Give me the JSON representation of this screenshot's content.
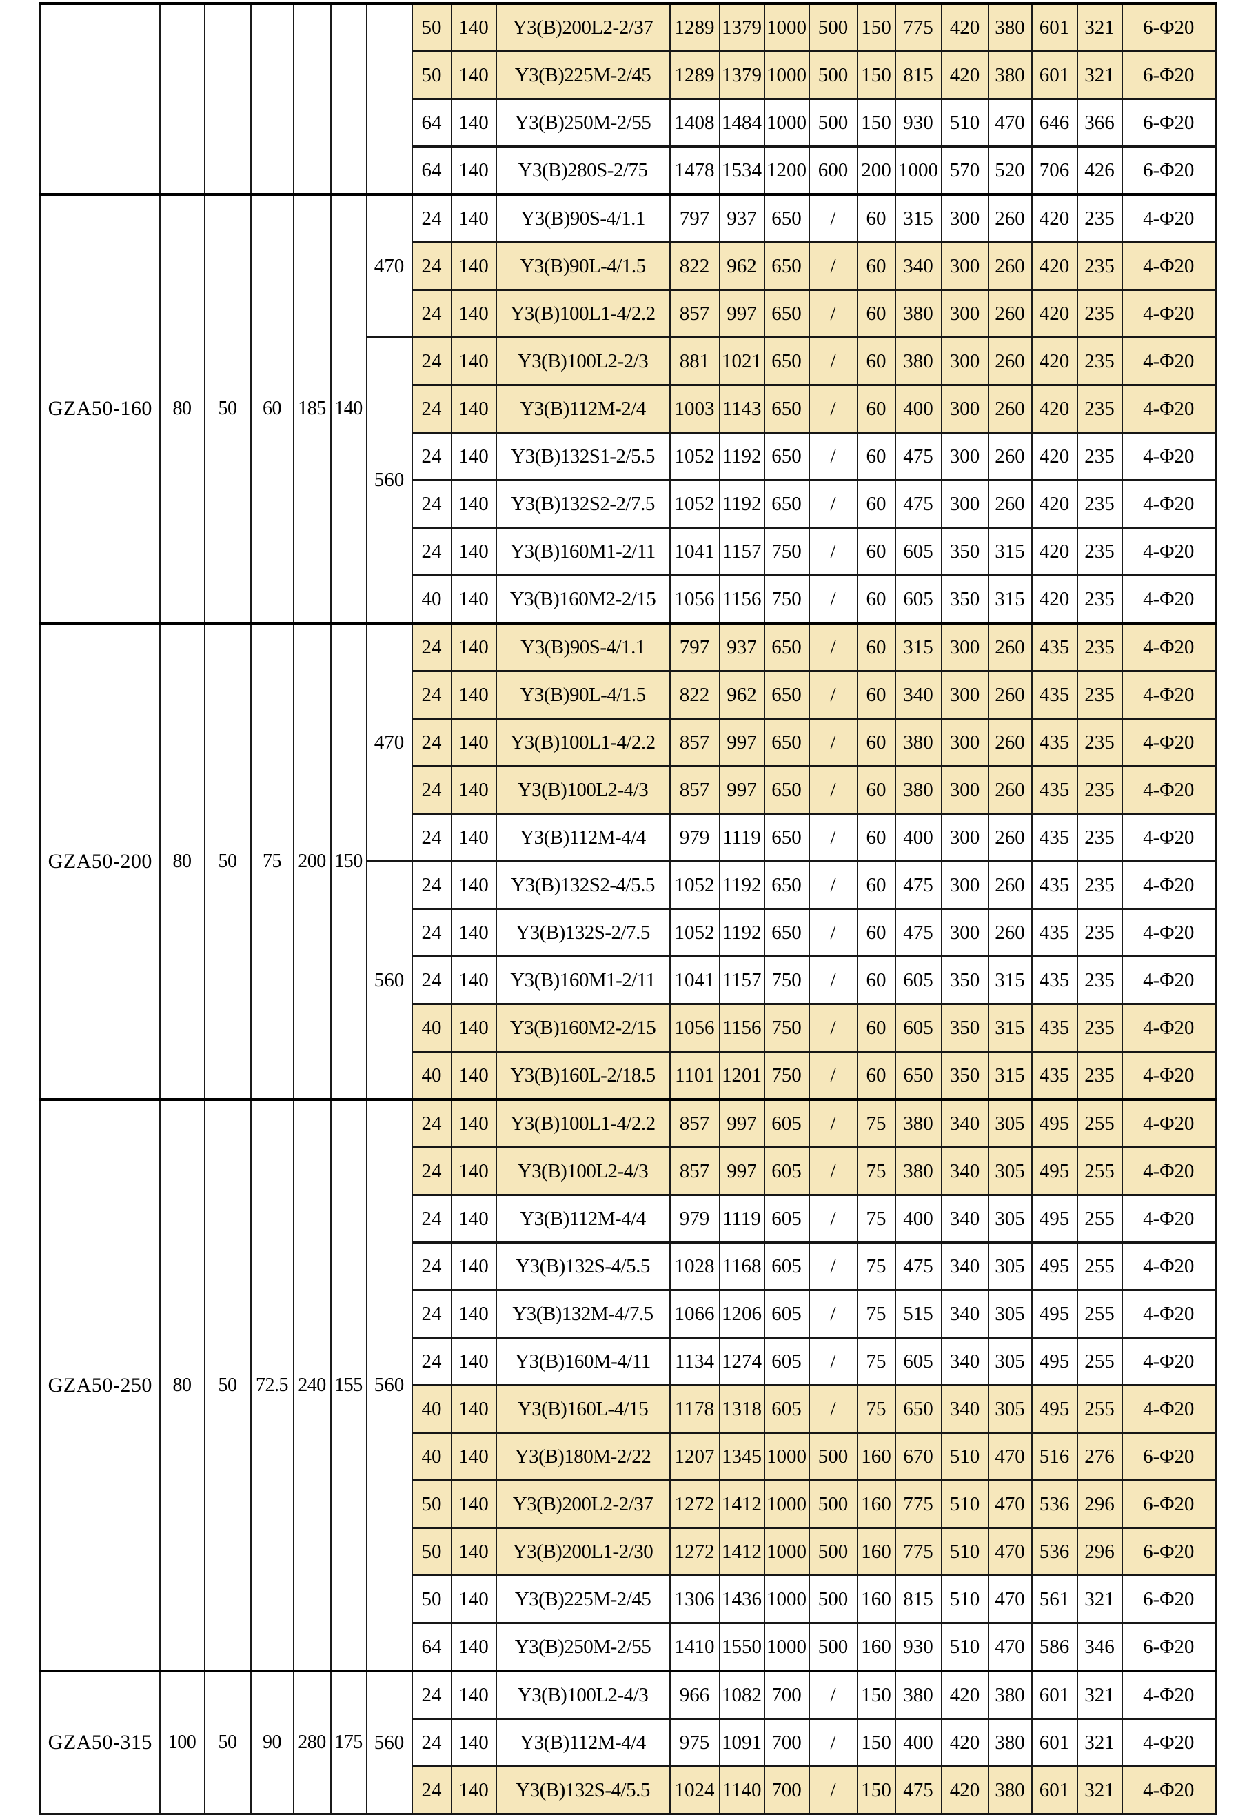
{
  "page": {
    "background_color": "#ffffff",
    "row_cream_color": "#f6e7bb",
    "row_white_color": "#ffffff",
    "grid_line_color": "#161616"
  },
  "table": {
    "blocks": [
      {
        "model": "",
        "dims": [
          "",
          "",
          "",
          "",
          ""
        ],
        "speed_groups": [
          {
            "label": "",
            "rows": 4
          }
        ],
        "rows": [
          {
            "shade": "cream",
            "cells": [
              "50",
              "140",
              "Y3(B)200L2-2/37",
              "1289",
              "1379",
              "1000",
              "500",
              "150",
              "775",
              "420",
              "380",
              "601",
              "321",
              "6-Φ20"
            ]
          },
          {
            "shade": "cream",
            "cells": [
              "50",
              "140",
              "Y3(B)225M-2/45",
              "1289",
              "1379",
              "1000",
              "500",
              "150",
              "815",
              "420",
              "380",
              "601",
              "321",
              "6-Φ20"
            ]
          },
          {
            "shade": "white",
            "cells": [
              "64",
              "140",
              "Y3(B)250M-2/55",
              "1408",
              "1484",
              "1000",
              "500",
              "150",
              "930",
              "510",
              "470",
              "646",
              "366",
              "6-Φ20"
            ]
          },
          {
            "shade": "white",
            "cells": [
              "64",
              "140",
              "Y3(B)280S-2/75",
              "1478",
              "1534",
              "1200",
              "600",
              "200",
              "1000",
              "570",
              "520",
              "706",
              "426",
              "6-Φ20"
            ]
          }
        ]
      },
      {
        "model": "GZA50-160",
        "dims": [
          "80",
          "50",
          "60",
          "185",
          "140"
        ],
        "speed_groups": [
          {
            "label": "470",
            "rows": 3
          },
          {
            "label": "560",
            "rows": 6
          }
        ],
        "rows": [
          {
            "shade": "white",
            "cells": [
              "24",
              "140",
              "Y3(B)90S-4/1.1",
              "797",
              "937",
              "650",
              "/",
              "60",
              "315",
              "300",
              "260",
              "420",
              "235",
              "4-Φ20"
            ]
          },
          {
            "shade": "cream",
            "cells": [
              "24",
              "140",
              "Y3(B)90L-4/1.5",
              "822",
              "962",
              "650",
              "/",
              "60",
              "340",
              "300",
              "260",
              "420",
              "235",
              "4-Φ20"
            ]
          },
          {
            "shade": "cream",
            "cells": [
              "24",
              "140",
              "Y3(B)100L1-4/2.2",
              "857",
              "997",
              "650",
              "/",
              "60",
              "380",
              "300",
              "260",
              "420",
              "235",
              "4-Φ20"
            ]
          },
          {
            "shade": "cream",
            "cells": [
              "24",
              "140",
              "Y3(B)100L2-2/3",
              "881",
              "1021",
              "650",
              "/",
              "60",
              "380",
              "300",
              "260",
              "420",
              "235",
              "4-Φ20"
            ]
          },
          {
            "shade": "cream",
            "cells": [
              "24",
              "140",
              "Y3(B)112M-2/4",
              "1003",
              "1143",
              "650",
              "/",
              "60",
              "400",
              "300",
              "260",
              "420",
              "235",
              "4-Φ20"
            ]
          },
          {
            "shade": "white",
            "cells": [
              "24",
              "140",
              "Y3(B)132S1-2/5.5",
              "1052",
              "1192",
              "650",
              "/",
              "60",
              "475",
              "300",
              "260",
              "420",
              "235",
              "4-Φ20"
            ]
          },
          {
            "shade": "white",
            "cells": [
              "24",
              "140",
              "Y3(B)132S2-2/7.5",
              "1052",
              "1192",
              "650",
              "/",
              "60",
              "475",
              "300",
              "260",
              "420",
              "235",
              "4-Φ20"
            ]
          },
          {
            "shade": "white",
            "cells": [
              "24",
              "140",
              "Y3(B)160M1-2/11",
              "1041",
              "1157",
              "750",
              "/",
              "60",
              "605",
              "350",
              "315",
              "420",
              "235",
              "4-Φ20"
            ]
          },
          {
            "shade": "white",
            "cells": [
              "40",
              "140",
              "Y3(B)160M2-2/15",
              "1056",
              "1156",
              "750",
              "/",
              "60",
              "605",
              "350",
              "315",
              "420",
              "235",
              "4-Φ20"
            ]
          }
        ]
      },
      {
        "model": "GZA50-200",
        "dims": [
          "80",
          "50",
          "75",
          "200",
          "150"
        ],
        "speed_groups": [
          {
            "label": "470",
            "rows": 5
          },
          {
            "label": "560",
            "rows": 5
          }
        ],
        "rows": [
          {
            "shade": "cream",
            "cells": [
              "24",
              "140",
              "Y3(B)90S-4/1.1",
              "797",
              "937",
              "650",
              "/",
              "60",
              "315",
              "300",
              "260",
              "435",
              "235",
              "4-Φ20"
            ]
          },
          {
            "shade": "cream",
            "cells": [
              "24",
              "140",
              "Y3(B)90L-4/1.5",
              "822",
              "962",
              "650",
              "/",
              "60",
              "340",
              "300",
              "260",
              "435",
              "235",
              "4-Φ20"
            ]
          },
          {
            "shade": "cream",
            "cells": [
              "24",
              "140",
              "Y3(B)100L1-4/2.2",
              "857",
              "997",
              "650",
              "/",
              "60",
              "380",
              "300",
              "260",
              "435",
              "235",
              "4-Φ20"
            ]
          },
          {
            "shade": "cream",
            "cells": [
              "24",
              "140",
              "Y3(B)100L2-4/3",
              "857",
              "997",
              "650",
              "/",
              "60",
              "380",
              "300",
              "260",
              "435",
              "235",
              "4-Φ20"
            ]
          },
          {
            "shade": "white",
            "cells": [
              "24",
              "140",
              "Y3(B)112M-4/4",
              "979",
              "1119",
              "650",
              "/",
              "60",
              "400",
              "300",
              "260",
              "435",
              "235",
              "4-Φ20"
            ]
          },
          {
            "shade": "white",
            "cells": [
              "24",
              "140",
              "Y3(B)132S2-4/5.5",
              "1052",
              "1192",
              "650",
              "/",
              "60",
              "475",
              "300",
              "260",
              "435",
              "235",
              "4-Φ20"
            ]
          },
          {
            "shade": "white",
            "cells": [
              "24",
              "140",
              "Y3(B)132S-2/7.5",
              "1052",
              "1192",
              "650",
              "/",
              "60",
              "475",
              "300",
              "260",
              "435",
              "235",
              "4-Φ20"
            ]
          },
          {
            "shade": "white",
            "cells": [
              "24",
              "140",
              "Y3(B)160M1-2/11",
              "1041",
              "1157",
              "750",
              "/",
              "60",
              "605",
              "350",
              "315",
              "435",
              "235",
              "4-Φ20"
            ]
          },
          {
            "shade": "cream",
            "cells": [
              "40",
              "140",
              "Y3(B)160M2-2/15",
              "1056",
              "1156",
              "750",
              "/",
              "60",
              "605",
              "350",
              "315",
              "435",
              "235",
              "4-Φ20"
            ]
          },
          {
            "shade": "cream",
            "cells": [
              "40",
              "140",
              "Y3(B)160L-2/18.5",
              "1101",
              "1201",
              "750",
              "/",
              "60",
              "650",
              "350",
              "315",
              "435",
              "235",
              "4-Φ20"
            ]
          }
        ]
      },
      {
        "model": "GZA50-250",
        "dims": [
          "80",
          "50",
          "72.5",
          "240",
          "155"
        ],
        "speed_groups": [
          {
            "label": "560",
            "rows": 12
          }
        ],
        "rows": [
          {
            "shade": "cream",
            "cells": [
              "24",
              "140",
              "Y3(B)100L1-4/2.2",
              "857",
              "997",
              "605",
              "/",
              "75",
              "380",
              "340",
              "305",
              "495",
              "255",
              "4-Φ20"
            ]
          },
          {
            "shade": "cream",
            "cells": [
              "24",
              "140",
              "Y3(B)100L2-4/3",
              "857",
              "997",
              "605",
              "/",
              "75",
              "380",
              "340",
              "305",
              "495",
              "255",
              "4-Φ20"
            ]
          },
          {
            "shade": "white",
            "cells": [
              "24",
              "140",
              "Y3(B)112M-4/4",
              "979",
              "1119",
              "605",
              "/",
              "75",
              "400",
              "340",
              "305",
              "495",
              "255",
              "4-Φ20"
            ]
          },
          {
            "shade": "white",
            "cells": [
              "24",
              "140",
              "Y3(B)132S-4/5.5",
              "1028",
              "1168",
              "605",
              "/",
              "75",
              "475",
              "340",
              "305",
              "495",
              "255",
              "4-Φ20"
            ]
          },
          {
            "shade": "white",
            "cells": [
              "24",
              "140",
              "Y3(B)132M-4/7.5",
              "1066",
              "1206",
              "605",
              "/",
              "75",
              "515",
              "340",
              "305",
              "495",
              "255",
              "4-Φ20"
            ]
          },
          {
            "shade": "white",
            "cells": [
              "24",
              "140",
              "Y3(B)160M-4/11",
              "1134",
              "1274",
              "605",
              "/",
              "75",
              "605",
              "340",
              "305",
              "495",
              "255",
              "4-Φ20"
            ]
          },
          {
            "shade": "cream",
            "cells": [
              "40",
              "140",
              "Y3(B)160L-4/15",
              "1178",
              "1318",
              "605",
              "/",
              "75",
              "650",
              "340",
              "305",
              "495",
              "255",
              "4-Φ20"
            ]
          },
          {
            "shade": "cream",
            "cells": [
              "40",
              "140",
              "Y3(B)180M-2/22",
              "1207",
              "1345",
              "1000",
              "500",
              "160",
              "670",
              "510",
              "470",
              "516",
              "276",
              "6-Φ20"
            ]
          },
          {
            "shade": "cream",
            "cells": [
              "50",
              "140",
              "Y3(B)200L2-2/37",
              "1272",
              "1412",
              "1000",
              "500",
              "160",
              "775",
              "510",
              "470",
              "536",
              "296",
              "6-Φ20"
            ]
          },
          {
            "shade": "cream",
            "cells": [
              "50",
              "140",
              "Y3(B)200L1-2/30",
              "1272",
              "1412",
              "1000",
              "500",
              "160",
              "775",
              "510",
              "470",
              "536",
              "296",
              "6-Φ20"
            ]
          },
          {
            "shade": "white",
            "cells": [
              "50",
              "140",
              "Y3(B)225M-2/45",
              "1306",
              "1436",
              "1000",
              "500",
              "160",
              "815",
              "510",
              "470",
              "561",
              "321",
              "6-Φ20"
            ]
          },
          {
            "shade": "white",
            "cells": [
              "64",
              "140",
              "Y3(B)250M-2/55",
              "1410",
              "1550",
              "1000",
              "500",
              "160",
              "930",
              "510",
              "470",
              "586",
              "346",
              "6-Φ20"
            ]
          }
        ]
      },
      {
        "model": "GZA50-315",
        "dims": [
          "100",
          "50",
          "90",
          "280",
          "175"
        ],
        "speed_groups": [
          {
            "label": "560",
            "rows": 3
          }
        ],
        "rows": [
          {
            "shade": "white",
            "cells": [
              "24",
              "140",
              "Y3(B)100L2-4/3",
              "966",
              "1082",
              "700",
              "/",
              "150",
              "380",
              "420",
              "380",
              "601",
              "321",
              "4-Φ20"
            ]
          },
          {
            "shade": "white",
            "cells": [
              "24",
              "140",
              "Y3(B)112M-4/4",
              "975",
              "1091",
              "700",
              "/",
              "150",
              "400",
              "420",
              "380",
              "601",
              "321",
              "4-Φ20"
            ]
          },
          {
            "shade": "cream",
            "cells": [
              "24",
              "140",
              "Y3(B)132S-4/5.5",
              "1024",
              "1140",
              "700",
              "/",
              "150",
              "475",
              "420",
              "380",
              "601",
              "321",
              "4-Φ20"
            ]
          }
        ]
      }
    ]
  }
}
